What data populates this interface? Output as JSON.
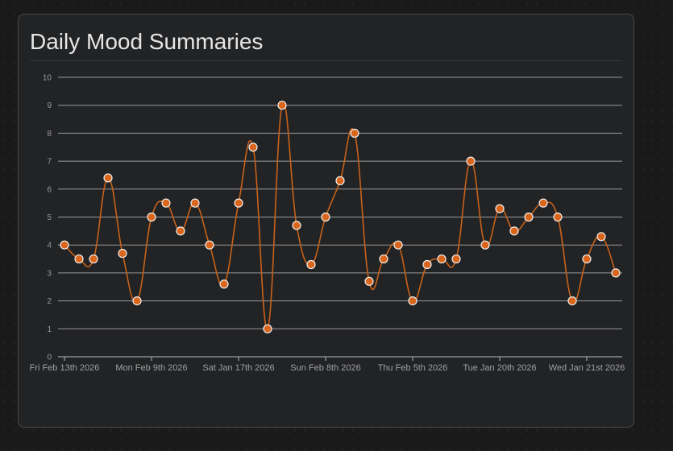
{
  "card": {
    "title": "Daily Mood Summaries"
  },
  "chart_data": {
    "type": "line",
    "title": "Daily Mood Summaries",
    "xlabel": "",
    "ylabel": "",
    "ylim": [
      0,
      10
    ],
    "yticks": [
      0,
      1,
      2,
      3,
      4,
      5,
      6,
      7,
      8,
      9,
      10
    ],
    "grid": true,
    "x_tick_labels": [
      {
        "index": 0,
        "label": "Fri Feb 13th 2026"
      },
      {
        "index": 6,
        "label": "Mon Feb 9th 2026"
      },
      {
        "index": 12,
        "label": "Sat Jan 17th 2026"
      },
      {
        "index": 18,
        "label": "Sun Feb 8th 2026"
      },
      {
        "index": 24,
        "label": "Thu Feb 5th 2026"
      },
      {
        "index": 30,
        "label": "Tue Jan 20th 2026"
      },
      {
        "index": 36,
        "label": "Wed Jan 21st 2026"
      }
    ],
    "values": [
      4,
      3.5,
      3.5,
      6.4,
      3.7,
      2,
      5,
      5.5,
      4.5,
      5.5,
      4,
      2.6,
      5.5,
      7.5,
      1,
      9,
      4.7,
      3.3,
      5,
      6.3,
      8,
      2.7,
      3.5,
      4,
      2,
      3.3,
      3.5,
      3.5,
      7,
      4,
      5.3,
      4.5,
      5,
      5.5,
      5,
      2,
      3.5,
      4.3,
      3
    ],
    "colors": {
      "line": "#c8621a",
      "point": "#d9661c",
      "point_stroke": "#f0f0f0",
      "grid": "#9a9a9a"
    }
  }
}
